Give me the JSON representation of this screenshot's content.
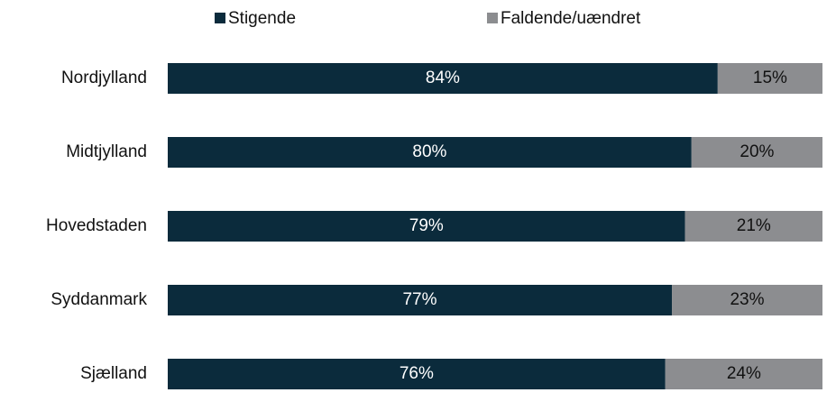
{
  "chart_data": {
    "type": "stacked_bar_horizontal",
    "categories": [
      "Nordjylland",
      "Midtjylland",
      "Hovedstaden",
      "Syddanmark",
      "Sjælland"
    ],
    "series": [
      {
        "name": "Stigende",
        "color": "#0b2b3c",
        "values": [
          84,
          80,
          79,
          77,
          76
        ],
        "value_labels": [
          "84%",
          "80%",
          "79%",
          "77%",
          "76%"
        ]
      },
      {
        "name": "Faldende/uændret",
        "color": "#8c8d90",
        "values": [
          15,
          20,
          21,
          23,
          24
        ],
        "value_labels": [
          "15%",
          "20%",
          "21%",
          "23%",
          "24%"
        ]
      }
    ],
    "xlim": [
      0,
      100
    ],
    "legend": "top"
  }
}
